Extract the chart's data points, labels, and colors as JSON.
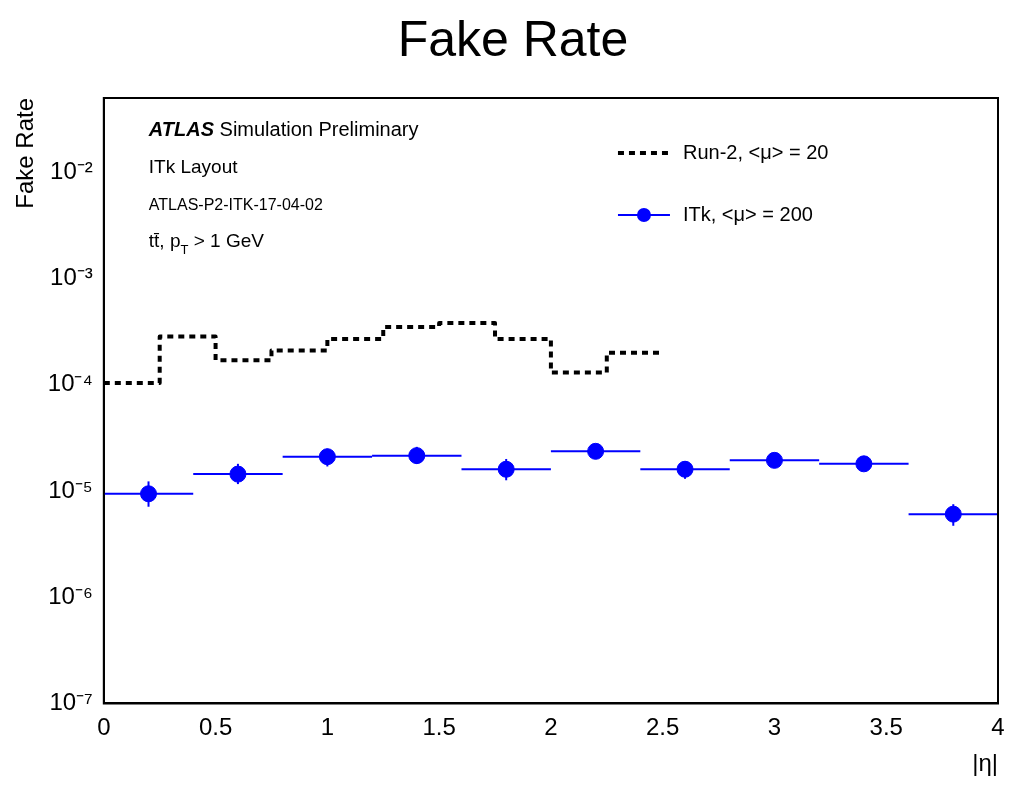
{
  "chart_data": {
    "type": "line",
    "title": "Fake Rate",
    "xlabel": "|η|",
    "ylabel": "Fake Rate",
    "annotations": [
      "ATLAS Simulation Preliminary",
      "ITk Layout",
      "ATLAS-P2-ITK-17-04-02",
      "tt̄, p$_{T}$ > 1 GeV"
    ],
    "log": "y",
    "grid": false,
    "legend": "top right",
    "xlim": [
      0,
      4
    ],
    "xticks": [
      0,
      0.5,
      1,
      1.5,
      2,
      2.5,
      3,
      3.5,
      4
    ],
    "ylim": [
      1e-07,
      0.05
    ],
    "yticks": [
      {
        "value": 1e-07,
        "label": "10⁻⁷"
      },
      {
        "value": 1e-06,
        "label": "10⁻⁶"
      },
      {
        "value": 1e-05,
        "label": "10⁻⁵"
      },
      {
        "value": 0.0001,
        "label": "10⁻⁴"
      },
      {
        "value": 0.001,
        "label": "10⁻³"
      },
      {
        "value": 0.01,
        "label": "10⁻²"
      }
    ],
    "series": [
      {
        "name": "Run-2, <μ> = 20",
        "type": "step",
        "color": "#000000",
        "line_style": "dotted",
        "marker": "none",
        "x": [
          0,
          0.25,
          0.5,
          0.75,
          1,
          1.25,
          1.5,
          1.75,
          2,
          2.25,
          2.5
        ],
        "values": [
          0.000104,
          0.000285,
          0.00017,
          0.00021,
          0.00027,
          0.00035,
          0.00038,
          0.00027,
          0.00013,
          0.0002,
          0.0002
        ]
      },
      {
        "name": "ITk, <μ> = 200",
        "type": "scatter",
        "color": "#0000ff",
        "marker": "circle",
        "x": [
          0.2,
          0.6,
          1.0,
          1.4,
          1.8,
          2.2,
          2.6,
          3.0,
          3.4,
          3.8
        ],
        "values": [
          9.4e-06,
          1.44e-05,
          2.1e-05,
          2.15e-05,
          1.6e-05,
          2.36e-05,
          1.6e-05,
          1.94e-05,
          1.8e-05,
          6.05e-06
        ],
        "xerrors": [
          0.2,
          0.2,
          0.2,
          0.2,
          0.2,
          0.2,
          0.2,
          0.2,
          0.2,
          0.2
        ],
        "errors": [
          [
            7.1e-06,
            1.23e-05
          ],
          [
            1.16e-05,
            1.8e-05
          ],
          [
            1.7e-05,
            2.5e-05
          ],
          [
            1.8e-05,
            2.6e-05
          ],
          [
            1.26e-05,
            2e-05
          ],
          null,
          [
            1.3e-05,
            1.9e-05
          ],
          null,
          null,
          [
            4.7e-06,
            7.5e-06
          ]
        ]
      }
    ]
  }
}
